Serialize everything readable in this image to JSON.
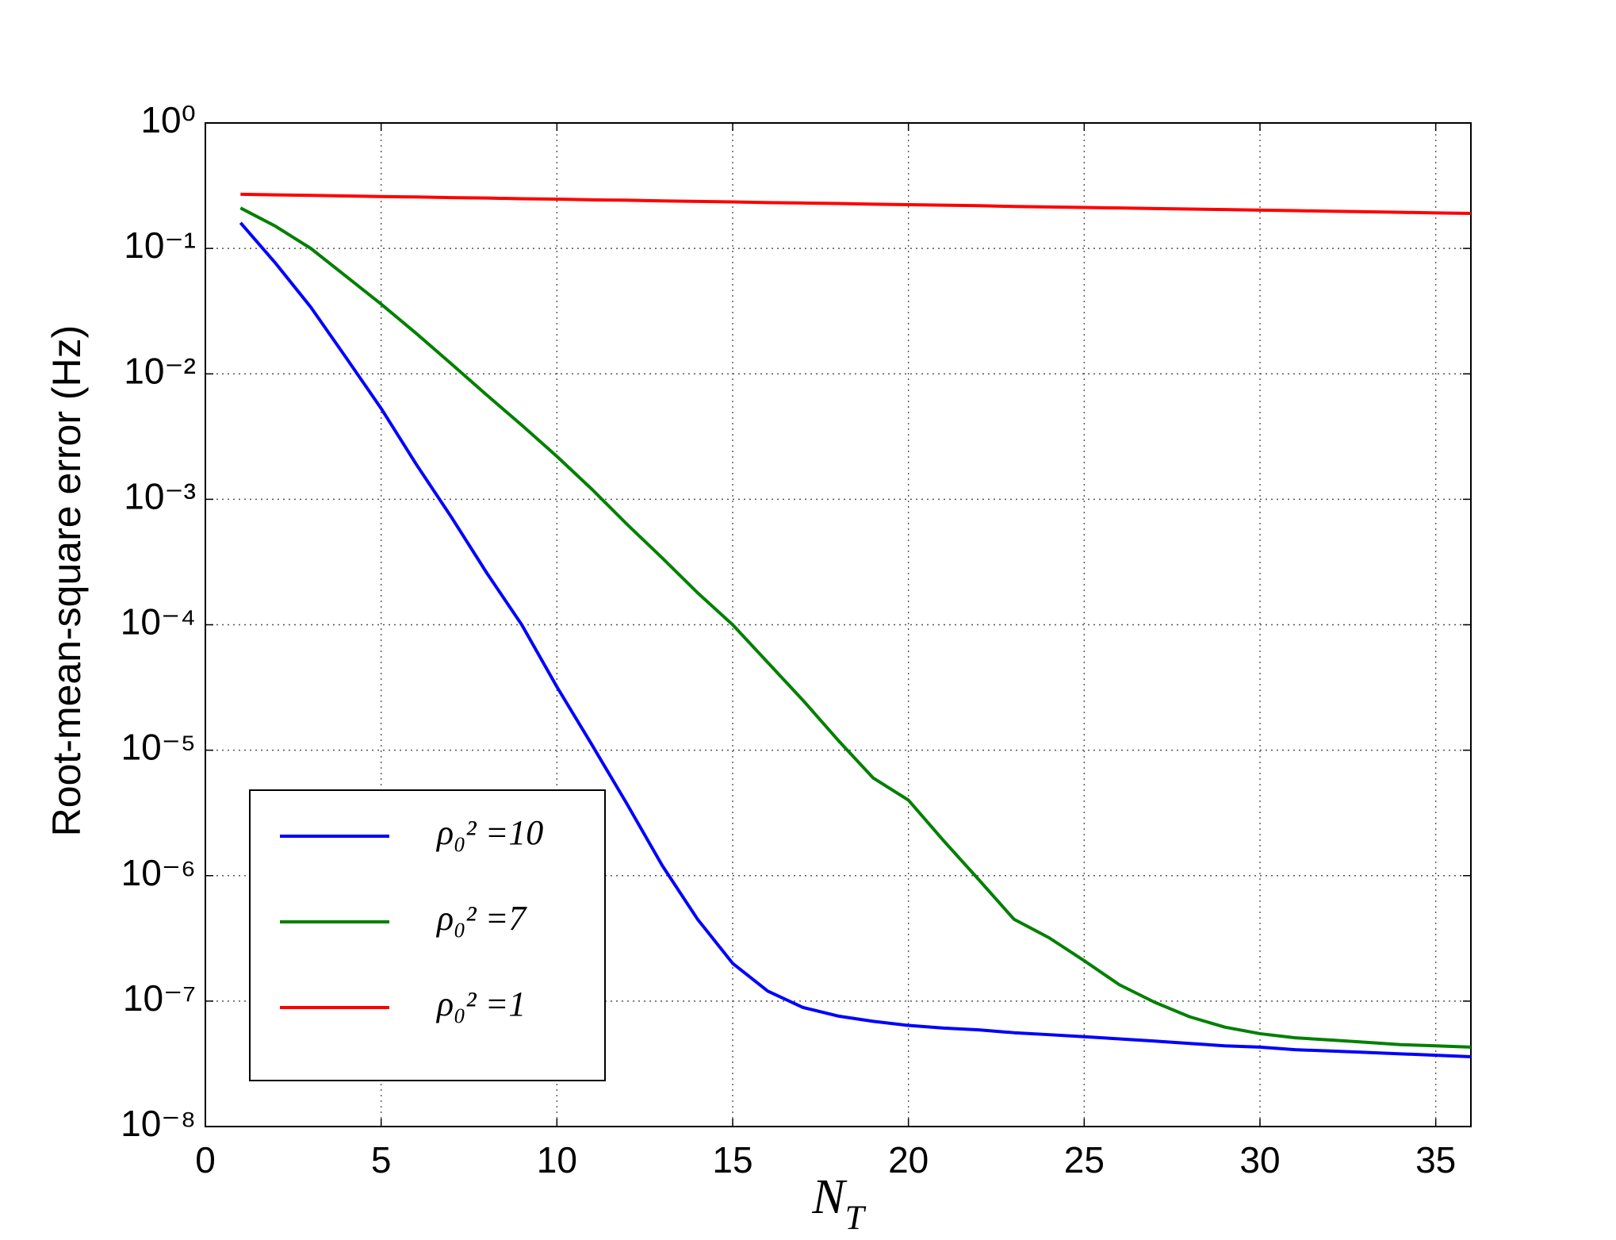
{
  "chart_data": {
    "type": "line",
    "y_label": "Root-mean-square error (Hz)",
    "x_label": "N_T",
    "x": [
      1,
      2,
      3,
      4,
      5,
      6,
      7,
      8,
      9,
      10,
      11,
      12,
      13,
      14,
      15,
      16,
      17,
      18,
      19,
      20,
      21,
      22,
      23,
      24,
      25,
      26,
      27,
      28,
      29,
      30,
      31,
      32,
      33,
      34,
      35,
      36
    ],
    "series": [
      {
        "name": "ρ₀² =10",
        "color": "#0000ff",
        "values": [
          0.16,
          0.076,
          0.034,
          0.0135,
          0.0053,
          0.0019,
          0.00072,
          0.00026,
          0.0001,
          3.2e-05,
          1.1e-05,
          3.7e-06,
          1.2e-06,
          4.5e-07,
          2e-07,
          1.2e-07,
          8.9e-08,
          7.6e-08,
          6.9e-08,
          6.4e-08,
          6.1e-08,
          5.9e-08,
          5.6e-08,
          5.4e-08,
          5.2e-08,
          5e-08,
          4.8e-08,
          4.6e-08,
          4.4e-08,
          4.3e-08,
          4.1e-08,
          4e-08,
          3.9e-08,
          3.8e-08,
          3.7e-08,
          3.6e-08
        ]
      },
      {
        "name": "ρ₀² =7",
        "color": "#008000",
        "values": [
          0.21,
          0.15,
          0.1,
          0.06,
          0.036,
          0.021,
          0.012,
          0.0068,
          0.0039,
          0.0022,
          0.0012,
          0.00063,
          0.00034,
          0.00018,
          0.0001,
          5e-05,
          2.5e-05,
          1.2e-05,
          6e-06,
          4e-06,
          1.9e-06,
          9.3e-07,
          4.5e-07,
          3.2e-07,
          2.1e-07,
          1.35e-07,
          9.8e-08,
          7.5e-08,
          6.2e-08,
          5.5e-08,
          5.1e-08,
          4.9e-08,
          4.7e-08,
          4.5e-08,
          4.4e-08,
          4.3e-08
        ]
      },
      {
        "name": "ρ₀² =1",
        "color": "#ff0000",
        "values": [
          0.27,
          0.267,
          0.265,
          0.262,
          0.259,
          0.257,
          0.254,
          0.252,
          0.249,
          0.247,
          0.244,
          0.242,
          0.239,
          0.237,
          0.235,
          0.232,
          0.23,
          0.228,
          0.225,
          0.223,
          0.221,
          0.219,
          0.216,
          0.214,
          0.212,
          0.21,
          0.208,
          0.206,
          0.204,
          0.202,
          0.2,
          0.198,
          0.196,
          0.194,
          0.192,
          0.19
        ]
      }
    ],
    "xlim": [
      0,
      36
    ],
    "xticks": [
      0,
      5,
      10,
      15,
      20,
      25,
      30,
      35
    ],
    "ylim": [
      1e-08,
      1
    ],
    "yscale": "log",
    "yticks": [
      {
        "value": 1e-08,
        "label": "10⁻⁸"
      },
      {
        "value": 1e-07,
        "label": "10⁻⁷"
      },
      {
        "value": 1e-06,
        "label": "10⁻⁶"
      },
      {
        "value": 1e-05,
        "label": "10⁻⁵"
      },
      {
        "value": 0.0001,
        "label": "10⁻⁴"
      },
      {
        "value": 0.001,
        "label": "10⁻³"
      },
      {
        "value": 0.01,
        "label": "10⁻²"
      },
      {
        "value": 0.1,
        "label": "10⁻¹"
      },
      {
        "value": 1,
        "label": "10⁰"
      }
    ],
    "grid": true,
    "legend_loc": "lower left"
  }
}
